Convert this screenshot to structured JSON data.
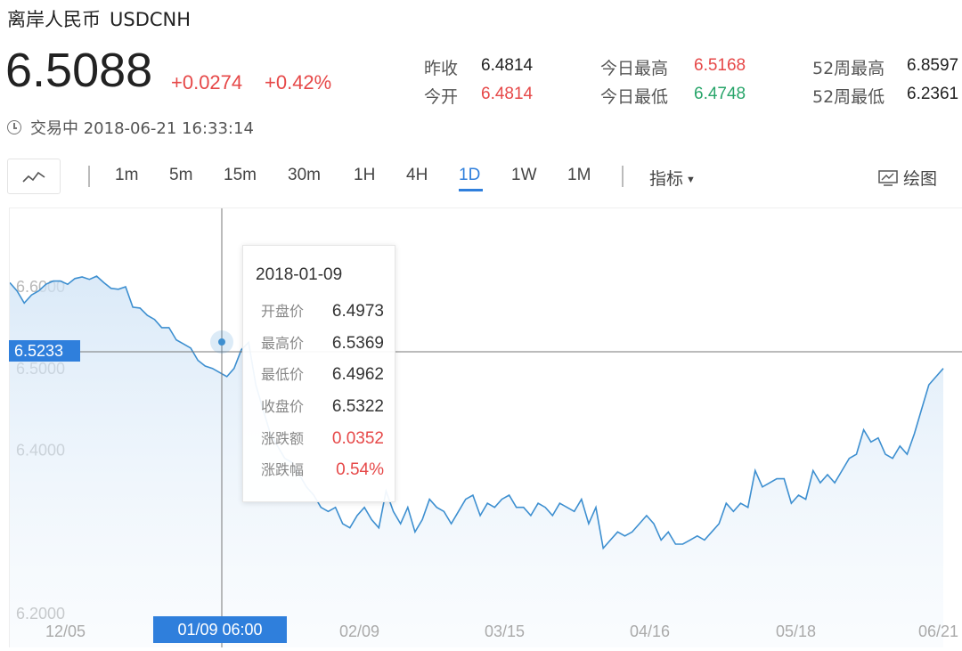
{
  "header": {
    "name": "离岸人民币",
    "code": "USDCNH"
  },
  "quote": {
    "price": "6.5088",
    "change": "+0.0274",
    "change_pct": "+0.42%"
  },
  "stats": {
    "prev_close": {
      "label": "昨收",
      "value": "6.4814"
    },
    "open": {
      "label": "今开",
      "value": "6.4814"
    },
    "day_high": {
      "label": "今日最高",
      "value": "6.5168"
    },
    "day_low": {
      "label": "今日最低",
      "value": "6.4748"
    },
    "week52_high": {
      "label": "52周最高",
      "value": "6.8597"
    },
    "week52_low": {
      "label": "52周最低",
      "value": "6.2361"
    }
  },
  "status": {
    "text": "交易中 2018-06-21 16:33:14"
  },
  "toolbar": {
    "periods": [
      "1m",
      "5m",
      "15m",
      "30m",
      "1H",
      "4H",
      "1D",
      "1W",
      "1M"
    ],
    "active_period": "1D",
    "indicator_label": "指标",
    "draw_label": "绘图"
  },
  "crosshair": {
    "price_label": "6.5233",
    "date_label": "01/09 06:00"
  },
  "tooltip": {
    "date": "2018-01-09",
    "rows": [
      {
        "label": "开盘价",
        "value": "6.4973",
        "color": "normal"
      },
      {
        "label": "最高价",
        "value": "6.5369",
        "color": "normal"
      },
      {
        "label": "最低价",
        "value": "6.4962",
        "color": "normal"
      },
      {
        "label": "收盘价",
        "value": "6.5322",
        "color": "normal"
      },
      {
        "label": "涨跌额",
        "value": "0.0352",
        "color": "red"
      },
      {
        "label": "涨跌幅",
        "value": "0.54%",
        "color": "red"
      }
    ]
  },
  "colors": {
    "up": "#e64848",
    "down": "#28a56a",
    "accent": "#2f7fdc",
    "line": "#3d8fd0"
  },
  "chart_data": {
    "type": "area",
    "y_ticks": [
      "6.6000",
      "6.5000",
      "6.4000",
      "6.2000"
    ],
    "x_ticks": [
      "12/05",
      "02/09",
      "03/15",
      "04/16",
      "05/18",
      "06/21"
    ],
    "ylim": [
      6.2,
      6.64
    ],
    "grid": false,
    "series": [
      {
        "values": [
          6.605,
          6.595,
          6.58,
          6.59,
          6.595,
          6.603,
          6.607,
          6.607,
          6.603,
          6.61,
          6.612,
          6.609,
          6.613,
          6.605,
          6.598,
          6.597,
          6.6,
          6.575,
          6.574,
          6.565,
          6.56,
          6.55,
          6.55,
          6.535,
          6.53,
          6.525,
          6.51,
          6.503,
          6.5,
          6.495,
          6.49,
          6.5,
          6.523,
          6.532,
          6.48,
          6.45,
          6.42,
          6.405,
          6.39,
          6.385,
          6.37,
          6.355,
          6.345,
          6.33,
          6.325,
          6.33,
          6.31,
          6.305,
          6.32,
          6.33,
          6.315,
          6.305,
          6.35,
          6.325,
          6.31,
          6.33,
          6.3,
          6.315,
          6.34,
          6.33,
          6.325,
          6.31,
          6.325,
          6.34,
          6.345,
          6.32,
          6.335,
          6.33,
          6.34,
          6.345,
          6.33,
          6.33,
          6.32,
          6.335,
          6.33,
          6.32,
          6.335,
          6.33,
          6.325,
          6.34,
          6.31,
          6.33,
          6.28,
          6.29,
          6.3,
          6.295,
          6.3,
          6.31,
          6.32,
          6.31,
          6.29,
          6.3,
          6.285,
          6.285,
          6.29,
          6.295,
          6.29,
          6.3,
          6.31,
          6.335,
          6.325,
          6.335,
          6.33,
          6.375,
          6.355,
          6.36,
          6.365,
          6.365,
          6.335,
          6.345,
          6.34,
          6.375,
          6.36,
          6.37,
          6.36,
          6.375,
          6.39,
          6.395,
          6.425,
          6.41,
          6.415,
          6.395,
          6.39,
          6.405,
          6.395,
          6.42,
          6.45,
          6.48,
          6.49,
          6.5
        ]
      }
    ]
  }
}
